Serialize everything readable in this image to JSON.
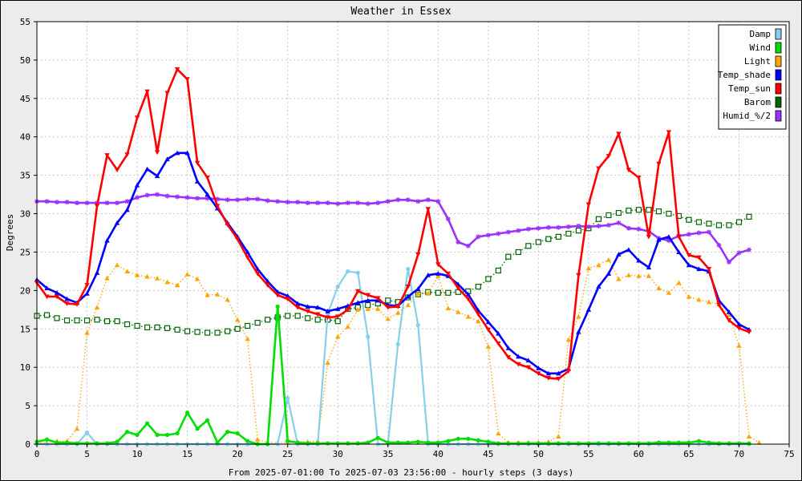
{
  "chart_data": {
    "type": "line",
    "title": "Weather in Essex",
    "xlabel": "From 2025-07-01:00 To 2025-07-03 23:56:00 - hourly steps (3 days)",
    "ylabel": "Degrees",
    "xlim": [
      0,
      75
    ],
    "ylim": [
      0,
      55
    ],
    "x_ticks": [
      0,
      5,
      10,
      15,
      20,
      25,
      30,
      35,
      40,
      45,
      50,
      55,
      60,
      65,
      70,
      75
    ],
    "y_ticks": [
      0,
      5,
      10,
      15,
      20,
      25,
      30,
      35,
      40,
      45,
      50,
      55
    ],
    "grid": true,
    "legend_position": "top-right",
    "series": [
      {
        "name": "Damp",
        "color": "#87ceeb",
        "style": "solid",
        "marker": "circle",
        "values": [
          0,
          0,
          0,
          0,
          0,
          1.5,
          0,
          0,
          0,
          0,
          0,
          0,
          0,
          0,
          0,
          0,
          0,
          0,
          0,
          0,
          0,
          0,
          0,
          0,
          0,
          6,
          0,
          0,
          0,
          17,
          20.5,
          22.5,
          22.3,
          14,
          0,
          0,
          13,
          22.8,
          15.5,
          0,
          0,
          0,
          0,
          0,
          0,
          0,
          0,
          0,
          0,
          0,
          0,
          0,
          0,
          0,
          0,
          0,
          0,
          0,
          0,
          0,
          0,
          0,
          0,
          0,
          0,
          0,
          0,
          0,
          0,
          0,
          0,
          0
        ]
      },
      {
        "name": "Wind",
        "color": "#00e000",
        "style": "solid",
        "marker": "circle",
        "values": [
          0.3,
          0.6,
          0.2,
          0.2,
          0.1,
          0.1,
          0.1,
          0.1,
          0.3,
          1.6,
          1.2,
          2.7,
          1.2,
          1.2,
          1.4,
          4.1,
          2,
          3.1,
          0.2,
          1.6,
          1.4,
          0.4,
          0,
          0,
          17.9,
          0.4,
          0.2,
          0.1,
          0.1,
          0.1,
          0.1,
          0.1,
          0.1,
          0.2,
          0.8,
          0.2,
          0.2,
          0.2,
          0.3,
          0.2,
          0.2,
          0.4,
          0.7,
          0.7,
          0.5,
          0.3,
          0.1,
          0.1,
          0.1,
          0.1,
          0.1,
          0.1,
          0.1,
          0.1,
          0.1,
          0.1,
          0.1,
          0.1,
          0.1,
          0.1,
          0.1,
          0.1,
          0.2,
          0.2,
          0.2,
          0.2,
          0.4,
          0.2,
          0.1,
          0.1,
          0.1,
          0.1
        ]
      },
      {
        "name": "Light",
        "color": "#ffa500",
        "style": "dotted",
        "marker": "triangle",
        "values": [
          0.2,
          0.2,
          0.4,
          0.4,
          2,
          14.5,
          17.8,
          21.6,
          23.3,
          22.5,
          22,
          21.8,
          21.6,
          21.1,
          20.7,
          22.1,
          21.5,
          19.4,
          19.5,
          18.8,
          16.2,
          13.7,
          0.6,
          0.2,
          0.2,
          0.2,
          0.3,
          0.3,
          0.4,
          10.6,
          14,
          15.3,
          17.5,
          17.6,
          17.6,
          16.3,
          17.1,
          18.1,
          19.6,
          19.6,
          21.9,
          17.7,
          17.2,
          16.6,
          16,
          12.7,
          1.4,
          0.2,
          0.2,
          0.2,
          0.2,
          0.3,
          1,
          13.6,
          16.6,
          22.9,
          23.3,
          24,
          21.5,
          22,
          21.9,
          21.9,
          20.3,
          19.7,
          21,
          19.2,
          18.8,
          18.5,
          18.2,
          16.8,
          12.8,
          1,
          0.2
        ]
      },
      {
        "name": "Temp_shade",
        "color": "#0000ff",
        "style": "solid",
        "marker": "triangle",
        "values": [
          21.4,
          20.3,
          19.7,
          18.9,
          18.4,
          19.6,
          22.3,
          26.5,
          28.8,
          30.5,
          33.7,
          35.8,
          34.9,
          37.1,
          37.9,
          37.9,
          34.2,
          32.5,
          30.7,
          28.8,
          27,
          25,
          22.8,
          21.2,
          19.8,
          19.3,
          18.3,
          17.9,
          17.8,
          17.3,
          17.6,
          18,
          18.4,
          18.7,
          18.7,
          18.1,
          18,
          19.2,
          20.2,
          22,
          22.2,
          21.9,
          20.8,
          19.5,
          17.4,
          15.9,
          14.4,
          12.5,
          11.4,
          10.9,
          9.9,
          9.2,
          9.2,
          9.8,
          14.6,
          17.5,
          20.5,
          22.2,
          24.7,
          25.3,
          23.9,
          23,
          26.6,
          27,
          25,
          23.3,
          22.8,
          22.5,
          18.7,
          17.2,
          15.6,
          14.9
        ]
      },
      {
        "name": "Temp_sun",
        "color": "#ff0000",
        "style": "solid",
        "marker": "triangle-down",
        "values": [
          21,
          19.2,
          19.2,
          18.3,
          18.2,
          20.7,
          31,
          37.6,
          35.7,
          37.7,
          42.5,
          45.9,
          38,
          45.7,
          48.8,
          47.5,
          36.6,
          34.7,
          31,
          28.6,
          26.7,
          24.3,
          22.2,
          20.7,
          19.4,
          18.9,
          17.8,
          17.3,
          16.9,
          16.5,
          16.6,
          17.5,
          19.9,
          19.4,
          19,
          17.8,
          17.9,
          20.5,
          24.7,
          30.6,
          23.4,
          22.2,
          20.3,
          18.9,
          16.9,
          14.9,
          13.1,
          11.3,
          10.4,
          10,
          9.2,
          8.6,
          8.5,
          9.5,
          22,
          31.2,
          35.9,
          37.5,
          40.4,
          35.7,
          34.7,
          27,
          36.5,
          40.6,
          27,
          24.6,
          24.3,
          22.8,
          18.1,
          16.1,
          15.1,
          14.6
        ]
      },
      {
        "name": "Barom",
        "color": "#006400",
        "style": "dotted",
        "marker": "square",
        "values": [
          16.7,
          16.8,
          16.4,
          16.1,
          16.1,
          16.1,
          16.2,
          16,
          16,
          15.6,
          15.4,
          15.2,
          15.2,
          15.1,
          14.9,
          14.7,
          14.6,
          14.5,
          14.5,
          14.7,
          15,
          15.4,
          15.8,
          16.2,
          16.5,
          16.7,
          16.7,
          16.4,
          16.2,
          16.2,
          16,
          17.6,
          17.8,
          18.1,
          18.3,
          18.7,
          18.5,
          19.1,
          19.5,
          19.8,
          19.7,
          19.7,
          19.8,
          19.9,
          20.5,
          21.5,
          22.6,
          24.4,
          25,
          25.8,
          26.3,
          26.7,
          27,
          27.4,
          27.8,
          28.1,
          29.3,
          29.8,
          30.1,
          30.4,
          30.5,
          30.5,
          30.3,
          30,
          29.7,
          29.2,
          28.9,
          28.7,
          28.5,
          28.5,
          28.9,
          29.6
        ]
      },
      {
        "name": "Humid_%/2",
        "color": "#9b30ff",
        "style": "solid",
        "marker": "star",
        "values": [
          31.6,
          31.6,
          31.5,
          31.5,
          31.4,
          31.4,
          31.4,
          31.4,
          31.4,
          31.6,
          32.1,
          32.4,
          32.5,
          32.3,
          32.2,
          32.1,
          32,
          32,
          31.9,
          31.8,
          31.8,
          31.9,
          31.9,
          31.7,
          31.6,
          31.5,
          31.5,
          31.4,
          31.4,
          31.4,
          31.3,
          31.4,
          31.4,
          31.3,
          31.4,
          31.6,
          31.8,
          31.8,
          31.6,
          31.8,
          31.6,
          29.3,
          26.3,
          25.8,
          27,
          27.2,
          27.4,
          27.6,
          27.8,
          28,
          28.1,
          28.2,
          28.2,
          28.3,
          28.4,
          28.3,
          28.4,
          28.5,
          28.8,
          28.1,
          28,
          27.7,
          26.8,
          26.5,
          27.1,
          27.3,
          27.5,
          27.6,
          25.9,
          23.7,
          24.9,
          25.3
        ]
      }
    ]
  }
}
